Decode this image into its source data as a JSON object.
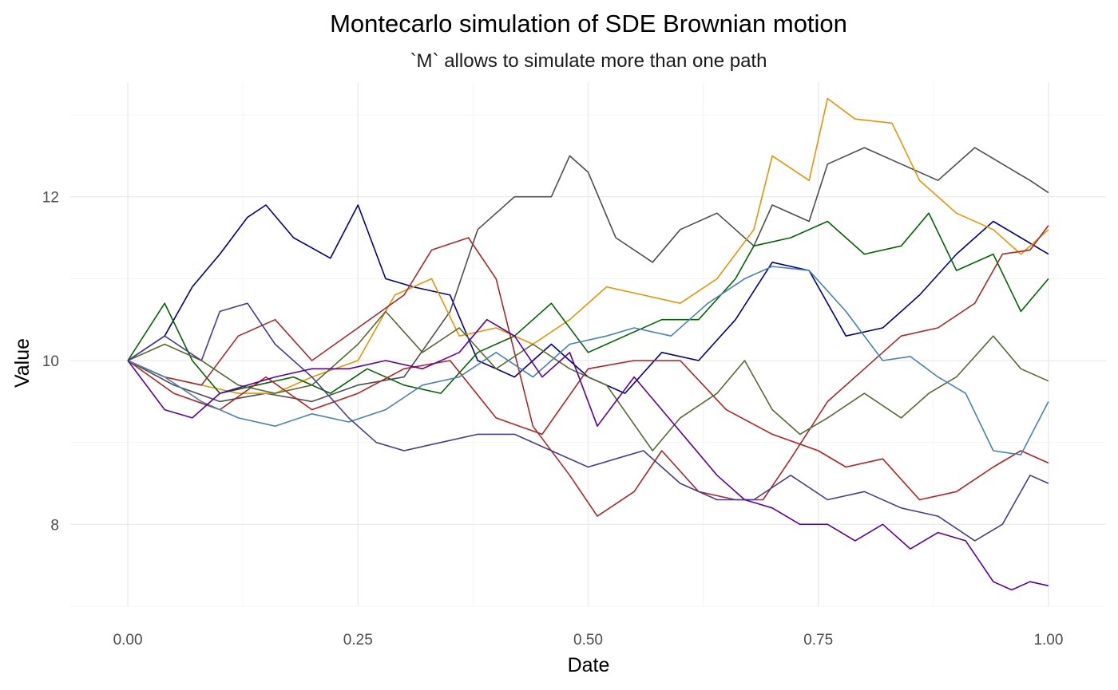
{
  "chart_data": {
    "type": "line",
    "title": "Montecarlo simulation of SDE Brownian motion",
    "subtitle": "`M` allows to simulate more than one path",
    "xlabel": "Date",
    "ylabel": "Value",
    "xlim": [
      -0.0625,
      1.0625
    ],
    "ylim": [
      7,
      13.4
    ],
    "xticks": [
      0,
      0.25,
      0.5,
      0.75,
      1
    ],
    "xtick_labels": [
      "0.00",
      "0.25",
      "0.50",
      "0.75",
      "1.00"
    ],
    "yticks": [
      8,
      10,
      12
    ],
    "ytick_labels": [
      "8",
      "10",
      "12"
    ],
    "grid": true,
    "legend": "none",
    "series": [
      {
        "color": "#00008B",
        "x": [
          0,
          0.04,
          0.07,
          0.1,
          0.13,
          0.15,
          0.18,
          0.22,
          0.25,
          0.28,
          0.31,
          0.35,
          0.38,
          0.42,
          0.46,
          0.5,
          0.54,
          0.58,
          0.62,
          0.66,
          0.7,
          0.74,
          0.78,
          0.82,
          0.86,
          0.9,
          0.94,
          0.97,
          1
        ],
        "y": [
          10,
          10.3,
          10.9,
          11.3,
          11.75,
          11.9,
          11.5,
          11.25,
          11.9,
          11.0,
          10.9,
          10.8,
          10.0,
          9.8,
          10.2,
          9.8,
          9.6,
          10.1,
          10.0,
          10.5,
          11.2,
          11.1,
          10.3,
          10.4,
          10.8,
          11.3,
          11.7,
          11.5,
          11.3
        ]
      },
      {
        "color": "#4D4D4D",
        "x": [
          0,
          0.05,
          0.1,
          0.15,
          0.2,
          0.25,
          0.3,
          0.35,
          0.38,
          0.42,
          0.46,
          0.48,
          0.5,
          0.53,
          0.57,
          0.6,
          0.64,
          0.68,
          0.7,
          0.74,
          0.76,
          0.8,
          0.84,
          0.88,
          0.92,
          0.95,
          0.98,
          1
        ],
        "y": [
          10,
          9.7,
          9.5,
          9.6,
          9.5,
          9.7,
          9.8,
          10.6,
          11.6,
          12.0,
          12.0,
          12.5,
          12.3,
          11.5,
          11.2,
          11.6,
          11.8,
          11.4,
          11.9,
          11.7,
          12.4,
          12.6,
          12.4,
          12.2,
          12.6,
          12.4,
          12.2,
          12.05
        ]
      },
      {
        "color": "#E69500",
        "x": [
          0,
          0.04,
          0.08,
          0.12,
          0.16,
          0.2,
          0.25,
          0.29,
          0.33,
          0.36,
          0.4,
          0.44,
          0.48,
          0.52,
          0.56,
          0.6,
          0.64,
          0.68,
          0.7,
          0.74,
          0.76,
          0.79,
          0.83,
          0.86,
          0.9,
          0.94,
          0.97,
          1
        ],
        "y": [
          10,
          9.8,
          9.7,
          9.6,
          9.6,
          9.8,
          10.0,
          10.8,
          11.0,
          10.3,
          10.4,
          10.2,
          10.5,
          10.9,
          10.8,
          10.7,
          11.0,
          11.6,
          12.5,
          12.2,
          13.2,
          12.95,
          12.9,
          12.2,
          11.8,
          11.6,
          11.3,
          11.6
        ]
      },
      {
        "color": "#006400",
        "x": [
          0,
          0.04,
          0.07,
          0.1,
          0.14,
          0.18,
          0.22,
          0.26,
          0.3,
          0.34,
          0.38,
          0.42,
          0.46,
          0.5,
          0.54,
          0.58,
          0.62,
          0.66,
          0.68,
          0.72,
          0.76,
          0.8,
          0.84,
          0.87,
          0.9,
          0.94,
          0.97,
          1
        ],
        "y": [
          10,
          10.7,
          10.0,
          9.6,
          9.7,
          9.8,
          9.6,
          9.9,
          9.7,
          9.6,
          10.1,
          10.3,
          10.7,
          10.1,
          10.3,
          10.5,
          10.5,
          11.0,
          11.4,
          11.5,
          11.7,
          11.3,
          11.4,
          11.8,
          11.1,
          11.3,
          10.6,
          11.0
        ]
      },
      {
        "color": "#A52A2A",
        "x": [
          0,
          0.04,
          0.08,
          0.12,
          0.16,
          0.2,
          0.25,
          0.3,
          0.33,
          0.37,
          0.4,
          0.44,
          0.48,
          0.51,
          0.55,
          0.58,
          0.62,
          0.66,
          0.69,
          0.72,
          0.76,
          0.8,
          0.84,
          0.88,
          0.92,
          0.95,
          0.98,
          1
        ],
        "y": [
          10,
          9.8,
          9.7,
          10.3,
          10.5,
          10.0,
          10.4,
          10.8,
          11.35,
          11.5,
          11.0,
          9.2,
          8.6,
          8.1,
          8.4,
          8.9,
          8.4,
          8.3,
          8.3,
          8.8,
          9.5,
          9.9,
          10.3,
          10.4,
          10.7,
          11.3,
          11.35,
          11.65
        ]
      },
      {
        "color": "#B22222",
        "x": [
          0,
          0.05,
          0.1,
          0.15,
          0.2,
          0.25,
          0.3,
          0.35,
          0.4,
          0.45,
          0.5,
          0.55,
          0.6,
          0.65,
          0.7,
          0.75,
          0.78,
          0.82,
          0.86,
          0.9,
          0.94,
          0.97,
          1
        ],
        "y": [
          10,
          9.6,
          9.4,
          9.8,
          9.4,
          9.6,
          9.9,
          10.0,
          9.3,
          9.1,
          9.9,
          10.0,
          10.0,
          9.4,
          9.1,
          8.9,
          8.7,
          8.8,
          8.3,
          8.4,
          8.7,
          8.9,
          8.75
        ]
      },
      {
        "color": "#556B2F",
        "x": [
          0,
          0.04,
          0.08,
          0.12,
          0.16,
          0.2,
          0.25,
          0.28,
          0.32,
          0.36,
          0.4,
          0.44,
          0.48,
          0.52,
          0.57,
          0.6,
          0.64,
          0.67,
          0.7,
          0.73,
          0.76,
          0.8,
          0.84,
          0.87,
          0.9,
          0.94,
          0.97,
          1
        ],
        "y": [
          10,
          10.2,
          10.0,
          9.7,
          9.6,
          9.7,
          10.2,
          10.6,
          10.1,
          10.4,
          9.9,
          10.2,
          9.9,
          9.7,
          8.9,
          9.3,
          9.6,
          10.0,
          9.4,
          9.1,
          9.3,
          9.6,
          9.3,
          9.6,
          9.8,
          10.3,
          9.9,
          9.75
        ]
      },
      {
        "color": "#4682B4",
        "x": [
          0,
          0.04,
          0.08,
          0.12,
          0.16,
          0.2,
          0.24,
          0.28,
          0.32,
          0.36,
          0.4,
          0.44,
          0.48,
          0.52,
          0.55,
          0.59,
          0.63,
          0.67,
          0.7,
          0.74,
          0.78,
          0.82,
          0.85,
          0.88,
          0.91,
          0.94,
          0.97,
          1
        ],
        "y": [
          10,
          9.8,
          9.5,
          9.3,
          9.2,
          9.35,
          9.25,
          9.4,
          9.7,
          9.8,
          10.1,
          9.8,
          10.2,
          10.3,
          10.4,
          10.3,
          10.7,
          11.0,
          11.15,
          11.1,
          10.6,
          10.0,
          10.05,
          9.8,
          9.6,
          8.9,
          8.85,
          9.5
        ]
      },
      {
        "color": "#483D8B",
        "x": [
          0,
          0.04,
          0.08,
          0.1,
          0.13,
          0.16,
          0.2,
          0.24,
          0.27,
          0.3,
          0.34,
          0.38,
          0.42,
          0.46,
          0.5,
          0.53,
          0.56,
          0.6,
          0.64,
          0.68,
          0.72,
          0.76,
          0.8,
          0.84,
          0.88,
          0.92,
          0.95,
          0.98,
          1
        ],
        "y": [
          10,
          10.3,
          10.0,
          10.6,
          10.7,
          10.2,
          9.8,
          9.3,
          9.0,
          8.9,
          9.0,
          9.1,
          9.1,
          8.9,
          8.7,
          8.8,
          8.9,
          8.5,
          8.3,
          8.3,
          8.6,
          8.3,
          8.4,
          8.2,
          8.1,
          7.8,
          8.0,
          8.6,
          8.5
        ]
      },
      {
        "color": "#5A00A0",
        "x": [
          0,
          0.04,
          0.07,
          0.1,
          0.13,
          0.16,
          0.2,
          0.24,
          0.28,
          0.32,
          0.36,
          0.39,
          0.42,
          0.45,
          0.48,
          0.51,
          0.55,
          0.58,
          0.61,
          0.64,
          0.67,
          0.7,
          0.73,
          0.76,
          0.79,
          0.82,
          0.85,
          0.88,
          0.91,
          0.94,
          0.96,
          0.98,
          1
        ],
        "y": [
          10,
          9.4,
          9.3,
          9.6,
          9.7,
          9.8,
          9.9,
          9.9,
          10.0,
          9.9,
          10.1,
          10.5,
          10.3,
          9.8,
          10.1,
          9.2,
          9.8,
          9.4,
          9.0,
          8.6,
          8.3,
          8.2,
          8.0,
          8.0,
          7.8,
          8.0,
          7.7,
          7.9,
          7.8,
          7.3,
          7.2,
          7.3,
          7.25
        ]
      }
    ]
  }
}
